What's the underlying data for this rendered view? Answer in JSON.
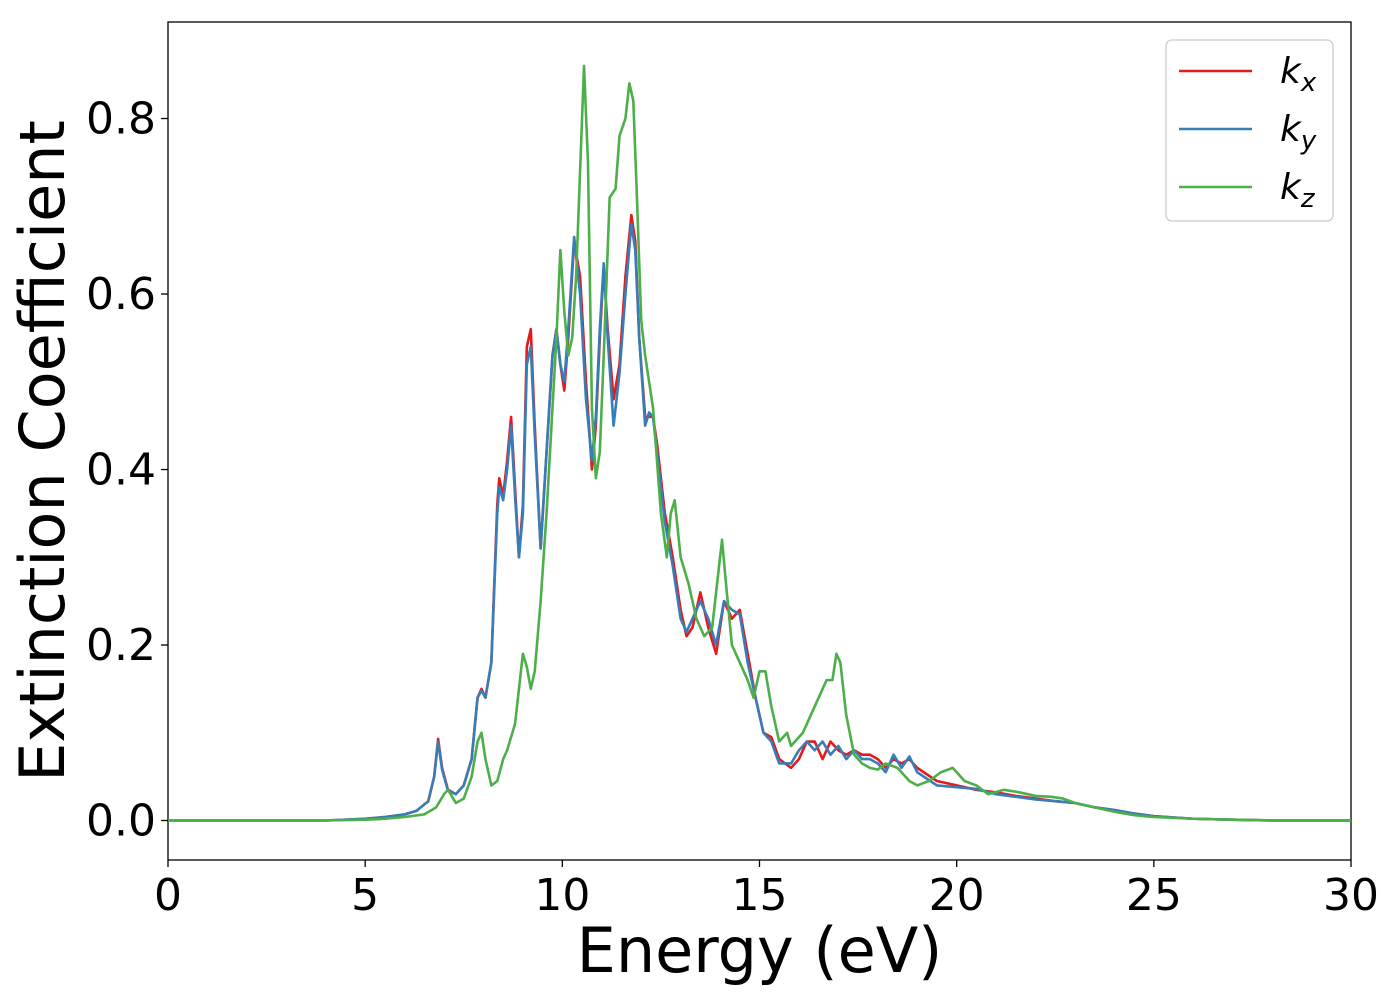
{
  "chart_data": {
    "type": "line",
    "title": "",
    "xlabel": "Energy (eV)",
    "ylabel": "Extinction Coefficient",
    "xlim": [
      0,
      30
    ],
    "ylim": [
      -0.045,
      0.91
    ],
    "xticks": [
      "0",
      "5",
      "10",
      "15",
      "20",
      "25",
      "30"
    ],
    "yticks": [
      "0.0",
      "0.2",
      "0.4",
      "0.6",
      "0.8"
    ],
    "grid": false,
    "legend_position": "top-right",
    "series": [
      {
        "name": "k_x",
        "label_main": "k",
        "label_sub": "x",
        "color": "#e41a1c",
        "x": [
          0,
          2,
          4,
          5,
          5.5,
          6,
          6.3,
          6.6,
          6.75,
          6.85,
          6.95,
          7.1,
          7.3,
          7.5,
          7.7,
          7.85,
          7.95,
          8.05,
          8.2,
          8.35,
          8.4,
          8.5,
          8.6,
          8.7,
          8.8,
          8.9,
          9.0,
          9.1,
          9.2,
          9.3,
          9.45,
          9.6,
          9.75,
          9.85,
          9.95,
          10.05,
          10.15,
          10.3,
          10.45,
          10.6,
          10.75,
          10.85,
          10.95,
          11.05,
          11.15,
          11.3,
          11.45,
          11.6,
          11.75,
          11.85,
          11.95,
          12.1,
          12.2,
          12.3,
          12.4,
          12.6,
          12.8,
          13.0,
          13.15,
          13.3,
          13.5,
          13.7,
          13.9,
          14.1,
          14.3,
          14.5,
          14.7,
          14.9,
          15.1,
          15.3,
          15.5,
          15.8,
          16.0,
          16.2,
          16.4,
          16.6,
          16.8,
          17.0,
          17.2,
          17.4,
          17.6,
          17.8,
          18.0,
          18.2,
          18.4,
          18.6,
          18.8,
          19.0,
          19.5,
          20.0,
          20.5,
          21.0,
          21.5,
          22.0,
          22.5,
          23.0,
          23.5,
          24.0,
          24.5,
          25.0,
          26.0,
          27.0,
          28.0,
          30.0
        ],
        "y": [
          0.0,
          0.0,
          0.0,
          0.002,
          0.004,
          0.007,
          0.011,
          0.022,
          0.05,
          0.093,
          0.06,
          0.035,
          0.03,
          0.04,
          0.07,
          0.14,
          0.15,
          0.14,
          0.18,
          0.36,
          0.39,
          0.37,
          0.41,
          0.46,
          0.38,
          0.3,
          0.36,
          0.54,
          0.56,
          0.45,
          0.31,
          0.42,
          0.53,
          0.56,
          0.52,
          0.49,
          0.55,
          0.66,
          0.62,
          0.5,
          0.4,
          0.45,
          0.55,
          0.63,
          0.56,
          0.48,
          0.52,
          0.62,
          0.69,
          0.66,
          0.55,
          0.46,
          0.46,
          0.46,
          0.43,
          0.35,
          0.3,
          0.24,
          0.21,
          0.22,
          0.26,
          0.22,
          0.19,
          0.25,
          0.23,
          0.24,
          0.19,
          0.14,
          0.1,
          0.095,
          0.07,
          0.06,
          0.07,
          0.09,
          0.09,
          0.07,
          0.09,
          0.08,
          0.075,
          0.08,
          0.075,
          0.075,
          0.07,
          0.06,
          0.07,
          0.065,
          0.07,
          0.06,
          0.045,
          0.04,
          0.035,
          0.032,
          0.028,
          0.025,
          0.022,
          0.02,
          0.015,
          0.012,
          0.008,
          0.005,
          0.002,
          0.001,
          0.0,
          0.0
        ]
      },
      {
        "name": "k_y",
        "label_main": "k",
        "label_sub": "y",
        "color": "#377eb8",
        "x": [
          0,
          2,
          4,
          5,
          5.5,
          6,
          6.3,
          6.6,
          6.75,
          6.85,
          6.95,
          7.1,
          7.3,
          7.5,
          7.7,
          7.85,
          7.95,
          8.05,
          8.2,
          8.35,
          8.4,
          8.5,
          8.6,
          8.7,
          8.8,
          8.9,
          9.0,
          9.1,
          9.2,
          9.3,
          9.45,
          9.6,
          9.75,
          9.85,
          9.95,
          10.05,
          10.15,
          10.3,
          10.45,
          10.6,
          10.75,
          10.85,
          10.95,
          11.05,
          11.15,
          11.3,
          11.45,
          11.6,
          11.75,
          11.85,
          11.95,
          12.1,
          12.2,
          12.3,
          12.4,
          12.6,
          12.8,
          13.0,
          13.15,
          13.3,
          13.5,
          13.7,
          13.9,
          14.1,
          14.3,
          14.5,
          14.7,
          14.9,
          15.1,
          15.3,
          15.5,
          15.8,
          16.0,
          16.2,
          16.4,
          16.6,
          16.8,
          17.0,
          17.2,
          17.4,
          17.6,
          17.8,
          18.0,
          18.2,
          18.4,
          18.6,
          18.8,
          19.0,
          19.5,
          20.0,
          20.5,
          21.0,
          21.5,
          22.0,
          22.5,
          23.0,
          23.5,
          24.0,
          24.5,
          25.0,
          26.0,
          27.0,
          28.0,
          30.0
        ],
        "y": [
          0.0,
          0.0,
          0.0,
          0.002,
          0.004,
          0.007,
          0.011,
          0.022,
          0.05,
          0.09,
          0.058,
          0.034,
          0.03,
          0.04,
          0.07,
          0.14,
          0.148,
          0.14,
          0.18,
          0.35,
          0.38,
          0.365,
          0.4,
          0.45,
          0.37,
          0.3,
          0.35,
          0.52,
          0.54,
          0.44,
          0.31,
          0.42,
          0.53,
          0.56,
          0.52,
          0.5,
          0.56,
          0.665,
          0.6,
          0.48,
          0.41,
          0.46,
          0.56,
          0.635,
          0.55,
          0.45,
          0.51,
          0.6,
          0.68,
          0.65,
          0.55,
          0.45,
          0.465,
          0.46,
          0.42,
          0.34,
          0.29,
          0.23,
          0.215,
          0.23,
          0.25,
          0.23,
          0.2,
          0.25,
          0.24,
          0.235,
          0.18,
          0.14,
          0.1,
          0.09,
          0.065,
          0.065,
          0.08,
          0.09,
          0.08,
          0.09,
          0.075,
          0.085,
          0.07,
          0.08,
          0.07,
          0.07,
          0.065,
          0.055,
          0.075,
          0.06,
          0.073,
          0.055,
          0.04,
          0.038,
          0.036,
          0.03,
          0.027,
          0.024,
          0.022,
          0.02,
          0.015,
          0.012,
          0.008,
          0.005,
          0.002,
          0.001,
          0.0,
          0.0
        ]
      },
      {
        "name": "k_z",
        "label_main": "k",
        "label_sub": "z",
        "color": "#4daf4a",
        "x": [
          0,
          2,
          4,
          5,
          5.5,
          6,
          6.5,
          6.8,
          7.0,
          7.1,
          7.3,
          7.5,
          7.7,
          7.85,
          7.95,
          8.05,
          8.2,
          8.35,
          8.5,
          8.6,
          8.8,
          8.9,
          9.0,
          9.1,
          9.2,
          9.3,
          9.45,
          9.6,
          9.75,
          9.85,
          9.95,
          10.05,
          10.15,
          10.25,
          10.35,
          10.45,
          10.55,
          10.65,
          10.75,
          10.85,
          10.95,
          11.05,
          11.2,
          11.35,
          11.45,
          11.6,
          11.7,
          11.8,
          11.9,
          12.0,
          12.1,
          12.3,
          12.5,
          12.65,
          12.75,
          12.85,
          13.0,
          13.2,
          13.4,
          13.6,
          13.8,
          13.95,
          14.05,
          14.15,
          14.3,
          14.5,
          14.7,
          14.85,
          15.0,
          15.15,
          15.3,
          15.5,
          15.7,
          15.8,
          15.9,
          16.1,
          16.3,
          16.5,
          16.7,
          16.85,
          16.95,
          17.05,
          17.2,
          17.4,
          17.6,
          17.8,
          18.0,
          18.2,
          18.5,
          18.8,
          19.0,
          19.3,
          19.6,
          19.9,
          20.2,
          20.5,
          20.8,
          21.2,
          21.6,
          22.0,
          22.4,
          22.7,
          23.0,
          23.5,
          24.0,
          24.5,
          25.0,
          26.0,
          27.0,
          28.0,
          30.0
        ],
        "y": [
          0.0,
          0.0,
          0.0,
          0.001,
          0.002,
          0.004,
          0.007,
          0.015,
          0.03,
          0.035,
          0.02,
          0.025,
          0.05,
          0.09,
          0.1,
          0.07,
          0.04,
          0.045,
          0.07,
          0.08,
          0.11,
          0.15,
          0.19,
          0.175,
          0.15,
          0.17,
          0.25,
          0.35,
          0.47,
          0.55,
          0.65,
          0.58,
          0.53,
          0.55,
          0.62,
          0.74,
          0.86,
          0.75,
          0.47,
          0.39,
          0.42,
          0.53,
          0.71,
          0.72,
          0.78,
          0.8,
          0.84,
          0.82,
          0.7,
          0.57,
          0.53,
          0.47,
          0.35,
          0.3,
          0.35,
          0.365,
          0.3,
          0.27,
          0.23,
          0.21,
          0.22,
          0.28,
          0.32,
          0.27,
          0.2,
          0.18,
          0.16,
          0.14,
          0.17,
          0.17,
          0.13,
          0.09,
          0.1,
          0.085,
          0.09,
          0.1,
          0.12,
          0.14,
          0.16,
          0.16,
          0.19,
          0.18,
          0.12,
          0.075,
          0.065,
          0.06,
          0.058,
          0.065,
          0.06,
          0.045,
          0.04,
          0.045,
          0.055,
          0.06,
          0.045,
          0.04,
          0.03,
          0.035,
          0.032,
          0.028,
          0.027,
          0.025,
          0.02,
          0.015,
          0.01,
          0.006,
          0.004,
          0.002,
          0.001,
          0.0,
          0.0
        ]
      }
    ]
  }
}
